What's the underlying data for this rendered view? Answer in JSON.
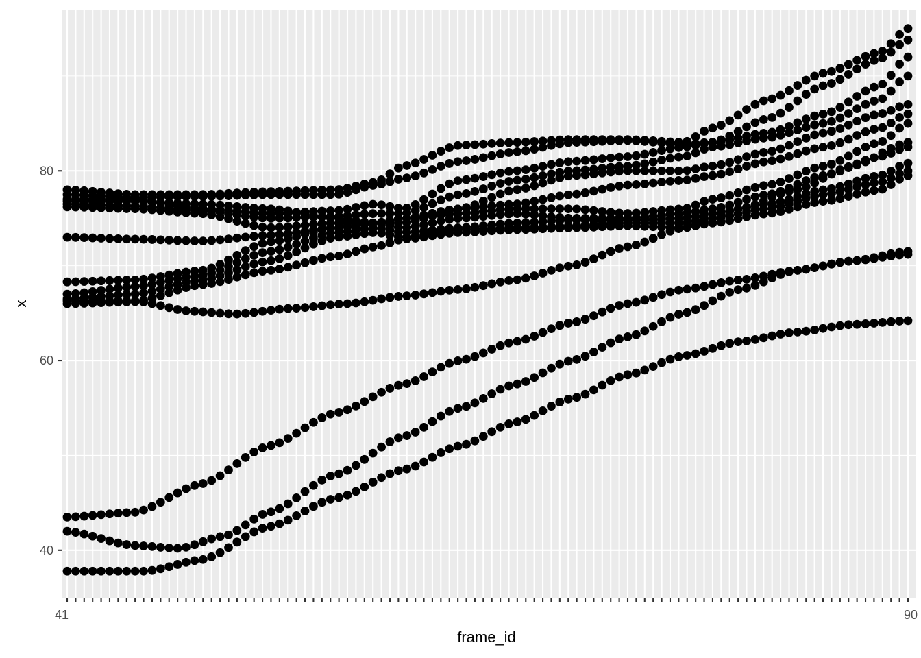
{
  "chart_data": {
    "type": "scatter",
    "title": "",
    "xlabel": "frame_id",
    "ylabel": "x",
    "x_axis_kind": "discrete",
    "x_first_label": "41",
    "x_last_label": "90",
    "x_categories_count": 100,
    "ylim": [
      35.0,
      97.0
    ],
    "y_ticks": [
      40,
      60,
      80
    ],
    "grid": true,
    "legend": "none",
    "point_color": "#000000",
    "panel_color": "#EBEBEB",
    "series": [
      {
        "keys": [
          [
            0,
            78.0
          ],
          [
            12,
            77.5
          ],
          [
            24,
            77.5
          ],
          [
            36,
            77.8
          ],
          [
            48,
            78.0
          ],
          [
            55,
            78.8
          ],
          [
            60,
            80.5
          ],
          [
            70,
            82.7
          ],
          [
            80,
            83.0
          ],
          [
            90,
            83.3
          ],
          [
            100,
            83.3
          ],
          [
            110,
            83.0
          ],
          [
            115,
            84.5
          ],
          [
            125,
            87.5
          ],
          [
            135,
            90.3
          ],
          [
            145,
            92.5
          ],
          [
            150,
            95.0
          ]
        ]
      },
      {
        "keys": [
          [
            0,
            77.5
          ],
          [
            12,
            77.2
          ],
          [
            24,
            77.3
          ],
          [
            36,
            77.5
          ],
          [
            48,
            77.5
          ],
          [
            55,
            78.5
          ],
          [
            60,
            79.2
          ],
          [
            70,
            81.0
          ],
          [
            80,
            82.0
          ],
          [
            90,
            83.0
          ],
          [
            100,
            83.2
          ],
          [
            110,
            82.8
          ],
          [
            115,
            83.0
          ],
          [
            125,
            85.5
          ],
          [
            135,
            89.0
          ],
          [
            145,
            91.8
          ],
          [
            150,
            93.8
          ]
        ]
      },
      {
        "keys": [
          [
            0,
            77.0
          ],
          [
            12,
            77.0
          ],
          [
            24,
            76.0
          ],
          [
            36,
            75.5
          ],
          [
            48,
            75.8
          ],
          [
            55,
            76.5
          ],
          [
            60,
            76.0
          ],
          [
            70,
            79.0
          ],
          [
            80,
            80.0
          ],
          [
            90,
            81.0
          ],
          [
            100,
            81.5
          ],
          [
            110,
            82.5
          ],
          [
            115,
            83.0
          ],
          [
            125,
            84.0
          ],
          [
            135,
            86.0
          ],
          [
            145,
            89.0
          ],
          [
            150,
            92.0
          ]
        ]
      },
      {
        "keys": [
          [
            0,
            76.5
          ],
          [
            12,
            76.3
          ],
          [
            24,
            75.8
          ],
          [
            36,
            75.0
          ],
          [
            48,
            75.2
          ],
          [
            55,
            75.5
          ],
          [
            60,
            75.5
          ],
          [
            70,
            77.5
          ],
          [
            80,
            79.0
          ],
          [
            90,
            80.0
          ],
          [
            100,
            80.5
          ],
          [
            110,
            81.5
          ],
          [
            115,
            82.5
          ],
          [
            125,
            83.5
          ],
          [
            135,
            85.0
          ],
          [
            145,
            87.5
          ],
          [
            150,
            90.0
          ]
        ]
      },
      {
        "keys": [
          [
            0,
            76.8
          ],
          [
            12,
            76.8
          ],
          [
            24,
            76.5
          ],
          [
            36,
            76.0
          ],
          [
            48,
            75.0
          ],
          [
            55,
            74.5
          ],
          [
            60,
            74.5
          ],
          [
            70,
            76.0
          ],
          [
            80,
            78.0
          ],
          [
            90,
            79.5
          ],
          [
            100,
            80.0
          ],
          [
            110,
            80.0
          ],
          [
            115,
            80.5
          ],
          [
            125,
            82.0
          ],
          [
            135,
            84.0
          ],
          [
            145,
            86.0
          ],
          [
            150,
            87.0
          ]
        ]
      },
      {
        "keys": [
          [
            0,
            76.2
          ],
          [
            12,
            76.0
          ],
          [
            24,
            75.5
          ],
          [
            36,
            74.0
          ],
          [
            48,
            74.5
          ],
          [
            55,
            74.5
          ],
          [
            60,
            75.0
          ],
          [
            70,
            76.0
          ],
          [
            80,
            76.5
          ],
          [
            90,
            77.5
          ],
          [
            100,
            78.5
          ],
          [
            110,
            79.0
          ],
          [
            115,
            79.5
          ],
          [
            125,
            81.0
          ],
          [
            135,
            82.5
          ],
          [
            145,
            84.5
          ],
          [
            150,
            86.0
          ]
        ]
      },
      {
        "keys": [
          [
            0,
            73.0
          ],
          [
            12,
            72.8
          ],
          [
            24,
            72.6
          ],
          [
            36,
            73.2
          ],
          [
            48,
            74.0
          ],
          [
            55,
            74.5
          ],
          [
            60,
            75.0
          ],
          [
            70,
            75.5
          ],
          [
            80,
            76.0
          ],
          [
            90,
            76.0
          ],
          [
            100,
            75.5
          ],
          [
            110,
            76.0
          ],
          [
            115,
            77.0
          ],
          [
            125,
            78.5
          ],
          [
            135,
            80.5
          ],
          [
            145,
            83.0
          ],
          [
            150,
            85.0
          ]
        ]
      },
      {
        "keys": [
          [
            0,
            68.3
          ],
          [
            12,
            68.5
          ],
          [
            24,
            69.5
          ],
          [
            36,
            72.5
          ],
          [
            48,
            74.0
          ],
          [
            55,
            74.5
          ],
          [
            60,
            74.0
          ],
          [
            70,
            75.0
          ],
          [
            80,
            75.5
          ],
          [
            90,
            75.0
          ],
          [
            100,
            75.0
          ],
          [
            110,
            75.5
          ],
          [
            115,
            76.0
          ],
          [
            125,
            77.5
          ],
          [
            135,
            79.5
          ],
          [
            145,
            81.5
          ],
          [
            150,
            82.5
          ]
        ]
      },
      {
        "keys": [
          [
            0,
            67.0
          ],
          [
            12,
            67.8
          ],
          [
            24,
            69.0
          ],
          [
            36,
            71.5
          ],
          [
            48,
            73.5
          ],
          [
            55,
            74.0
          ],
          [
            60,
            73.5
          ],
          [
            70,
            74.0
          ],
          [
            80,
            74.5
          ],
          [
            90,
            74.8
          ],
          [
            100,
            74.8
          ],
          [
            110,
            75.0
          ],
          [
            115,
            75.5
          ],
          [
            125,
            76.5
          ],
          [
            135,
            78.0
          ],
          [
            145,
            79.5
          ],
          [
            150,
            80.8
          ]
        ]
      },
      {
        "keys": [
          [
            0,
            66.5
          ],
          [
            12,
            67.0
          ],
          [
            24,
            68.5
          ],
          [
            36,
            70.5
          ],
          [
            48,
            73.0
          ],
          [
            55,
            73.5
          ],
          [
            60,
            73.0
          ],
          [
            70,
            73.8
          ],
          [
            80,
            74.0
          ],
          [
            90,
            74.2
          ],
          [
            100,
            74.5
          ],
          [
            110,
            74.5
          ],
          [
            115,
            75.0
          ],
          [
            125,
            76.0
          ],
          [
            135,
            77.5
          ],
          [
            145,
            78.8
          ],
          [
            150,
            80.0
          ]
        ]
      },
      {
        "keys": [
          [
            0,
            66.0
          ],
          [
            12,
            66.2
          ],
          [
            24,
            68.0
          ],
          [
            36,
            69.5
          ],
          [
            48,
            71.0
          ],
          [
            55,
            72.0
          ],
          [
            60,
            72.8
          ],
          [
            70,
            73.5
          ],
          [
            80,
            73.8
          ],
          [
            90,
            74.0
          ],
          [
            100,
            74.2
          ],
          [
            110,
            74.0
          ],
          [
            115,
            74.5
          ],
          [
            125,
            75.5
          ],
          [
            135,
            76.8
          ],
          [
            145,
            78.0
          ],
          [
            150,
            79.5
          ]
        ]
      },
      {
        "keys": [
          [
            0,
            66.3
          ],
          [
            12,
            66.3
          ],
          [
            22,
            65.2
          ],
          [
            30,
            64.9
          ],
          [
            40,
            65.5
          ],
          [
            50,
            66.0
          ],
          [
            60,
            66.8
          ],
          [
            70,
            67.5
          ],
          [
            80,
            68.5
          ],
          [
            90,
            70.0
          ],
          [
            100,
            72.0
          ],
          [
            110,
            74.0
          ],
          [
            120,
            76.0
          ],
          [
            130,
            78.0
          ],
          [
            140,
            80.5
          ],
          [
            150,
            83.0
          ]
        ]
      },
      {
        "keys": [
          [
            0,
            43.5
          ],
          [
            12,
            44.0
          ],
          [
            24,
            47.0
          ],
          [
            36,
            51.0
          ],
          [
            48,
            54.5
          ],
          [
            60,
            57.5
          ],
          [
            70,
            60.0
          ],
          [
            80,
            62.0
          ],
          [
            90,
            64.0
          ],
          [
            100,
            66.0
          ],
          [
            110,
            67.5
          ],
          [
            120,
            68.5
          ],
          [
            130,
            69.5
          ],
          [
            140,
            70.5
          ],
          [
            150,
            71.5
          ]
        ]
      },
      {
        "keys": [
          [
            0,
            42.0
          ],
          [
            12,
            40.5
          ],
          [
            20,
            40.2
          ],
          [
            28,
            41.5
          ],
          [
            36,
            44.0
          ],
          [
            48,
            48.0
          ],
          [
            60,
            52.0
          ],
          [
            70,
            55.0
          ],
          [
            80,
            57.5
          ],
          [
            90,
            60.0
          ],
          [
            100,
            62.5
          ],
          [
            110,
            65.0
          ],
          [
            120,
            67.5
          ],
          [
            130,
            69.5
          ],
          [
            140,
            70.5
          ],
          [
            150,
            71.2
          ]
        ]
      },
      {
        "keys": [
          [
            0,
            37.8
          ],
          [
            14,
            37.8
          ],
          [
            24,
            39.0
          ],
          [
            36,
            42.5
          ],
          [
            48,
            45.5
          ],
          [
            60,
            48.5
          ],
          [
            70,
            51.0
          ],
          [
            80,
            53.5
          ],
          [
            90,
            56.0
          ],
          [
            100,
            58.5
          ],
          [
            110,
            60.5
          ],
          [
            120,
            62.0
          ],
          [
            130,
            63.0
          ],
          [
            140,
            63.8
          ],
          [
            150,
            64.2
          ]
        ]
      }
    ]
  }
}
